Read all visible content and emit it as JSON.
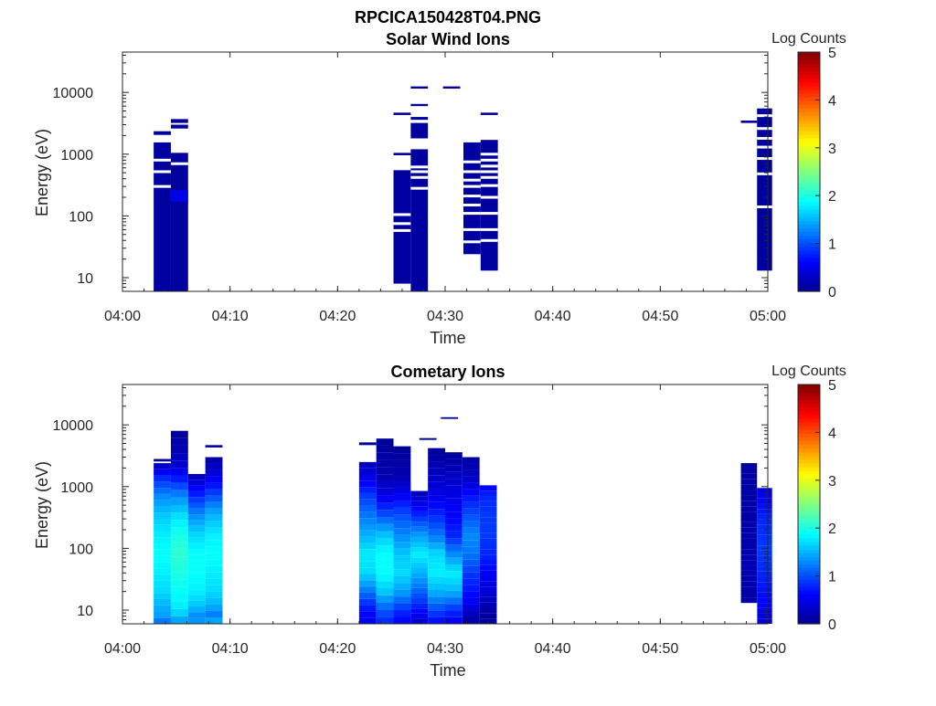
{
  "figure_title": "RPCICA150428T04.PNG",
  "colormap": [
    "#00008f",
    "#0000ff",
    "#0080ff",
    "#00ffff",
    "#80ff80",
    "#ffff00",
    "#ff8000",
    "#ff0000",
    "#800000"
  ],
  "chart_data": [
    {
      "type": "heatmap",
      "title": "Solar Wind Ions",
      "xlabel": "Time",
      "ylabel": "Energy (eV)",
      "x_ticks": [
        "04:00",
        "04:10",
        "04:20",
        "04:30",
        "04:40",
        "04:50",
        "05:00"
      ],
      "x_range_minutes": [
        0,
        60
      ],
      "y_scale": "log",
      "y_range": [
        6,
        45000
      ],
      "y_ticks": [
        "10",
        "100",
        "1000",
        "10000"
      ],
      "colorbar": {
        "label": "Log Counts",
        "range": [
          0,
          5
        ],
        "ticks": [
          "0",
          "1",
          "2",
          "3",
          "4",
          "5"
        ]
      },
      "cells": [
        {
          "t0": 2.9,
          "t1": 4.5,
          "e0": 6,
          "e1": 1550,
          "v": 0.1
        },
        {
          "t0": 2.9,
          "t1": 4.5,
          "e0": 2050,
          "e1": 2350,
          "v": 0.1
        },
        {
          "t0": 4.5,
          "t1": 6.1,
          "e0": 6,
          "e1": 1050,
          "v": 0.1
        },
        {
          "t0": 4.5,
          "t1": 6.1,
          "e0": 170,
          "e1": 260,
          "v": 0.5
        },
        {
          "t0": 4.5,
          "t1": 6.1,
          "e0": 2600,
          "e1": 3000,
          "v": 0.1
        },
        {
          "t0": 4.5,
          "t1": 6.1,
          "e0": 3200,
          "e1": 3700,
          "v": 0.1
        },
        {
          "t0": 25.2,
          "t1": 26.8,
          "e0": 8,
          "e1": 550,
          "v": 0.1
        },
        {
          "t0": 25.2,
          "t1": 26.8,
          "e0": 960,
          "e1": 1050,
          "v": 0.1
        },
        {
          "t0": 25.2,
          "t1": 26.8,
          "e0": 4300,
          "e1": 4700,
          "v": 0.1
        },
        {
          "t0": 26.8,
          "t1": 28.4,
          "e0": 6,
          "e1": 1200,
          "v": 0.1
        },
        {
          "t0": 26.8,
          "t1": 28.4,
          "e0": 1800,
          "e1": 3200,
          "v": 0.1
        },
        {
          "t0": 26.8,
          "t1": 28.4,
          "e0": 3600,
          "e1": 4000,
          "v": 0.1
        },
        {
          "t0": 26.8,
          "t1": 28.4,
          "e0": 6000,
          "e1": 6500,
          "v": 0.1
        },
        {
          "t0": 26.8,
          "t1": 28.4,
          "e0": 11500,
          "e1": 12500,
          "v": 0.1
        },
        {
          "t0": 29.8,
          "t1": 31.4,
          "e0": 11500,
          "e1": 12500,
          "v": 0.1
        },
        {
          "t0": 31.7,
          "t1": 33.3,
          "e0": 24,
          "e1": 1550,
          "v": 0.1
        },
        {
          "t0": 33.3,
          "t1": 34.9,
          "e0": 13,
          "e1": 1700,
          "v": 0.1
        },
        {
          "t0": 33.3,
          "t1": 34.9,
          "e0": 4300,
          "e1": 4700,
          "v": 0.1
        },
        {
          "t0": 57.5,
          "t1": 59.0,
          "e0": 3200,
          "e1": 3500,
          "v": 0.1
        },
        {
          "t0": 59.0,
          "t1": 60.4,
          "e0": 13,
          "e1": 5500,
          "v": 0.1
        }
      ],
      "gaps": [
        {
          "t0": 2.9,
          "t1": 4.5,
          "e": [
            300,
            520,
            800
          ]
        },
        {
          "t0": 4.5,
          "t1": 6.1,
          "e": [
            700
          ]
        },
        {
          "t0": 25.2,
          "t1": 26.8,
          "e": [
            58,
            75,
            105
          ]
        },
        {
          "t0": 26.8,
          "t1": 28.4,
          "e": [
            280,
            420,
            520,
            620,
            1500
          ]
        },
        {
          "t0": 31.7,
          "t1": 33.3,
          "e": [
            38,
            60,
            110,
            150,
            210,
            300,
            380,
            520,
            750
          ]
        },
        {
          "t0": 33.3,
          "t1": 34.9,
          "e": [
            40,
            60,
            110,
            200,
            310,
            420,
            520,
            640,
            800,
            1000
          ]
        },
        {
          "t0": 59.0,
          "t1": 60.4,
          "e": [
            140,
            480,
            850,
            1300,
            1800,
            2600,
            4200
          ]
        }
      ]
    },
    {
      "type": "heatmap",
      "title": "Cometary Ions",
      "xlabel": "Time",
      "ylabel": "Energy (eV)",
      "x_ticks": [
        "04:00",
        "04:10",
        "04:20",
        "04:30",
        "04:40",
        "04:50",
        "05:00"
      ],
      "x_range_minutes": [
        0,
        60
      ],
      "y_scale": "log",
      "y_range": [
        6,
        45000
      ],
      "y_ticks": [
        "10",
        "100",
        "1000",
        "10000"
      ],
      "colorbar": {
        "label": "Log Counts",
        "range": [
          0,
          5
        ],
        "ticks": [
          "0",
          "1",
          "2",
          "3",
          "4",
          "5"
        ]
      },
      "columns": [
        {
          "t0": 2.9,
          "t1": 4.5,
          "e_top": 2400,
          "profile": [
            [
              6,
              1.1
            ],
            [
              8,
              1.4
            ],
            [
              12,
              1.5
            ],
            [
              20,
              1.7
            ],
            [
              40,
              1.8
            ],
            [
              80,
              1.9
            ],
            [
              160,
              1.8
            ],
            [
              350,
              1.6
            ],
            [
              700,
              1.3
            ],
            [
              1400,
              0.8
            ],
            [
              2400,
              0.2
            ]
          ]
        },
        {
          "t0": 4.5,
          "t1": 6.1,
          "e_top": 8000,
          "profile": [
            [
              6,
              1.3
            ],
            [
              8,
              1.6
            ],
            [
              12,
              1.8
            ],
            [
              20,
              1.9
            ],
            [
              40,
              2.0
            ],
            [
              80,
              2.1
            ],
            [
              160,
              2.0
            ],
            [
              350,
              1.7
            ],
            [
              700,
              1.3
            ],
            [
              1400,
              0.7
            ],
            [
              2500,
              0.3
            ],
            [
              8000,
              0.05
            ]
          ]
        },
        {
          "t0": 6.1,
          "t1": 7.7,
          "e_top": 1600,
          "profile": [
            [
              6,
              1.4
            ],
            [
              8,
              1.3
            ],
            [
              12,
              1.6
            ],
            [
              20,
              1.8
            ],
            [
              40,
              1.9
            ],
            [
              80,
              1.9
            ],
            [
              160,
              1.7
            ],
            [
              350,
              1.3
            ],
            [
              700,
              0.8
            ],
            [
              1600,
              0.2
            ]
          ]
        },
        {
          "t0": 7.7,
          "t1": 9.3,
          "e_top": 3000,
          "profile": [
            [
              6,
              1.6
            ],
            [
              8,
              1.2
            ],
            [
              12,
              1.5
            ],
            [
              20,
              1.7
            ],
            [
              40,
              1.8
            ],
            [
              80,
              1.9
            ],
            [
              160,
              1.8
            ],
            [
              350,
              1.5
            ],
            [
              700,
              1.0
            ],
            [
              1400,
              0.5
            ],
            [
              3000,
              0.1
            ]
          ]
        },
        {
          "t0": 22.0,
          "t1": 23.6,
          "e_top": 2500,
          "profile": [
            [
              6,
              0.5
            ],
            [
              8,
              0.6
            ],
            [
              12,
              0.8
            ],
            [
              20,
              1.2
            ],
            [
              40,
              1.7
            ],
            [
              80,
              1.8
            ],
            [
              160,
              1.5
            ],
            [
              350,
              1.2
            ],
            [
              700,
              0.9
            ],
            [
              1400,
              0.5
            ],
            [
              2500,
              0.2
            ]
          ]
        },
        {
          "t0": 23.6,
          "t1": 25.2,
          "e_top": 6000,
          "profile": [
            [
              6,
              0.8
            ],
            [
              8,
              0.9
            ],
            [
              12,
              1.2
            ],
            [
              20,
              1.6
            ],
            [
              40,
              1.9
            ],
            [
              80,
              1.9
            ],
            [
              160,
              1.6
            ],
            [
              350,
              1.0
            ],
            [
              700,
              0.5
            ],
            [
              1400,
              0.2
            ],
            [
              6000,
              0.05
            ]
          ]
        },
        {
          "t0": 25.2,
          "t1": 26.8,
          "e_top": 4500,
          "profile": [
            [
              6,
              0.6
            ],
            [
              8,
              0.7
            ],
            [
              12,
              1.0
            ],
            [
              20,
              1.4
            ],
            [
              40,
              1.7
            ],
            [
              80,
              1.6
            ],
            [
              160,
              1.3
            ],
            [
              350,
              1.0
            ],
            [
              700,
              0.6
            ],
            [
              1400,
              0.2
            ],
            [
              4500,
              0.05
            ]
          ]
        },
        {
          "t0": 26.8,
          "t1": 28.4,
          "e_top": 850,
          "profile": [
            [
              6,
              0.3
            ],
            [
              8,
              0.5
            ],
            [
              12,
              0.8
            ],
            [
              20,
              1.1
            ],
            [
              40,
              1.5
            ],
            [
              80,
              1.8
            ],
            [
              160,
              1.4
            ],
            [
              350,
              0.8
            ],
            [
              850,
              0.2
            ]
          ]
        },
        {
          "t0": 28.4,
          "t1": 30.0,
          "e_top": 4200,
          "profile": [
            [
              6,
              0.6
            ],
            [
              8,
              0.8
            ],
            [
              12,
              1.1
            ],
            [
              20,
              1.5
            ],
            [
              40,
              1.8
            ],
            [
              80,
              1.7
            ],
            [
              160,
              1.2
            ],
            [
              350,
              0.8
            ],
            [
              700,
              0.5
            ],
            [
              1400,
              0.3
            ],
            [
              4200,
              0.05
            ]
          ]
        },
        {
          "t0": 30.0,
          "t1": 31.6,
          "e_top": 3600,
          "profile": [
            [
              6,
              0.5
            ],
            [
              8,
              0.7
            ],
            [
              12,
              1.0
            ],
            [
              20,
              1.5
            ],
            [
              40,
              1.8
            ],
            [
              80,
              1.3
            ],
            [
              160,
              0.8
            ],
            [
              350,
              0.6
            ],
            [
              700,
              0.5
            ],
            [
              1400,
              0.3
            ],
            [
              3600,
              0.05
            ]
          ]
        },
        {
          "t0": 31.6,
          "t1": 33.2,
          "e_top": 3000,
          "profile": [
            [
              6,
              0.1
            ],
            [
              8,
              0.2
            ],
            [
              12,
              0.5
            ],
            [
              20,
              0.7
            ],
            [
              40,
              0.9
            ],
            [
              80,
              1.2
            ],
            [
              160,
              1.3
            ],
            [
              350,
              1.0
            ],
            [
              700,
              0.7
            ],
            [
              1400,
              0.3
            ],
            [
              3000,
              0.1
            ]
          ]
        },
        {
          "t0": 33.2,
          "t1": 34.8,
          "e_top": 1050,
          "profile": [
            [
              6,
              0.1
            ],
            [
              8,
              0.1
            ],
            [
              12,
              0.2
            ],
            [
              20,
              0.4
            ],
            [
              40,
              0.6
            ],
            [
              80,
              0.8
            ],
            [
              160,
              0.9
            ],
            [
              350,
              0.9
            ],
            [
              700,
              0.8
            ],
            [
              1050,
              0.6
            ]
          ]
        },
        {
          "t0": 57.5,
          "t1": 59.0,
          "e_top": 2400,
          "profile": [
            [
              13,
              0.1
            ],
            [
              40,
              0.2
            ],
            [
              2400,
              0.1
            ]
          ]
        },
        {
          "t0": 59.0,
          "t1": 60.4,
          "e_top": 950,
          "profile": [
            [
              6,
              0.4
            ],
            [
              12,
              0.6
            ],
            [
              40,
              0.8
            ],
            [
              100,
              0.9
            ],
            [
              300,
              0.8
            ],
            [
              950,
              0.5
            ]
          ]
        }
      ],
      "isolated": [
        {
          "t0": 2.9,
          "t1": 4.5,
          "e0": 2550,
          "e1": 2800,
          "v": 0.1
        },
        {
          "t0": 7.7,
          "t1": 9.3,
          "e0": 4300,
          "e1": 4700,
          "v": 0.1
        },
        {
          "t0": 22.0,
          "t1": 23.6,
          "e0": 4700,
          "e1": 5200,
          "v": 0.1
        },
        {
          "t0": 27.6,
          "t1": 29.2,
          "e0": 5700,
          "e1": 6100,
          "v": 0.1
        },
        {
          "t0": 29.6,
          "t1": 31.2,
          "e0": 12500,
          "e1": 13300,
          "v": 0.1
        },
        {
          "t0": 57.5,
          "t1": 59.0,
          "e0": 280,
          "e1": 300,
          "v": 0.1
        }
      ],
      "low_cut": {
        "t0": 57.5,
        "t1": 59.0,
        "e0": 6,
        "e1": 13
      }
    }
  ]
}
